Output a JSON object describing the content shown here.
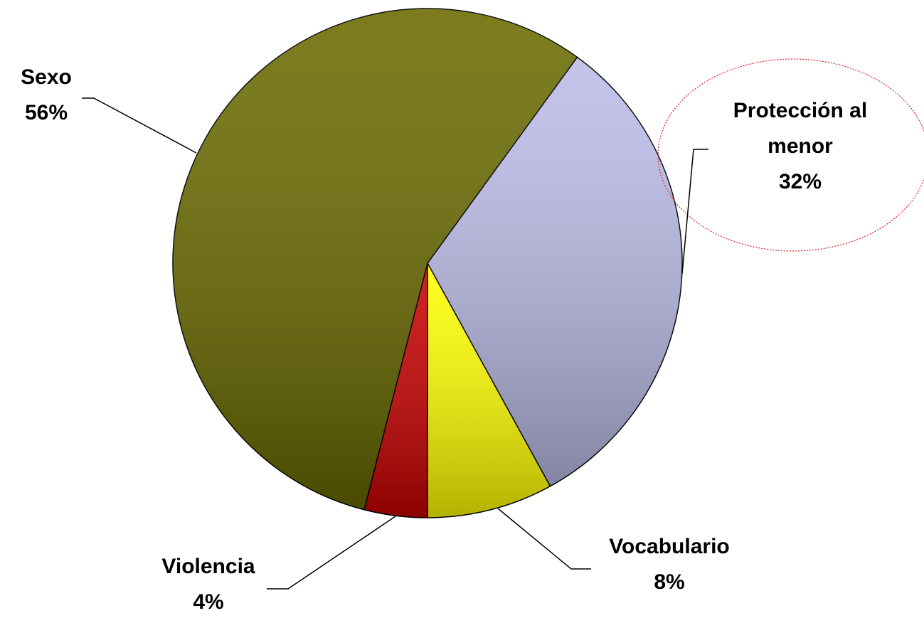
{
  "chart_data": {
    "type": "pie",
    "categories": [
      "Protección al menor",
      "Vocabulario",
      "Violencia",
      "Sexo"
    ],
    "values": [
      32,
      8,
      4,
      56
    ],
    "value_labels": [
      "32%",
      "8%",
      "4%",
      "56%"
    ],
    "colors": [
      "#bcbce8",
      "#ffff00",
      "#c80000",
      "#6a6a00"
    ]
  }
}
